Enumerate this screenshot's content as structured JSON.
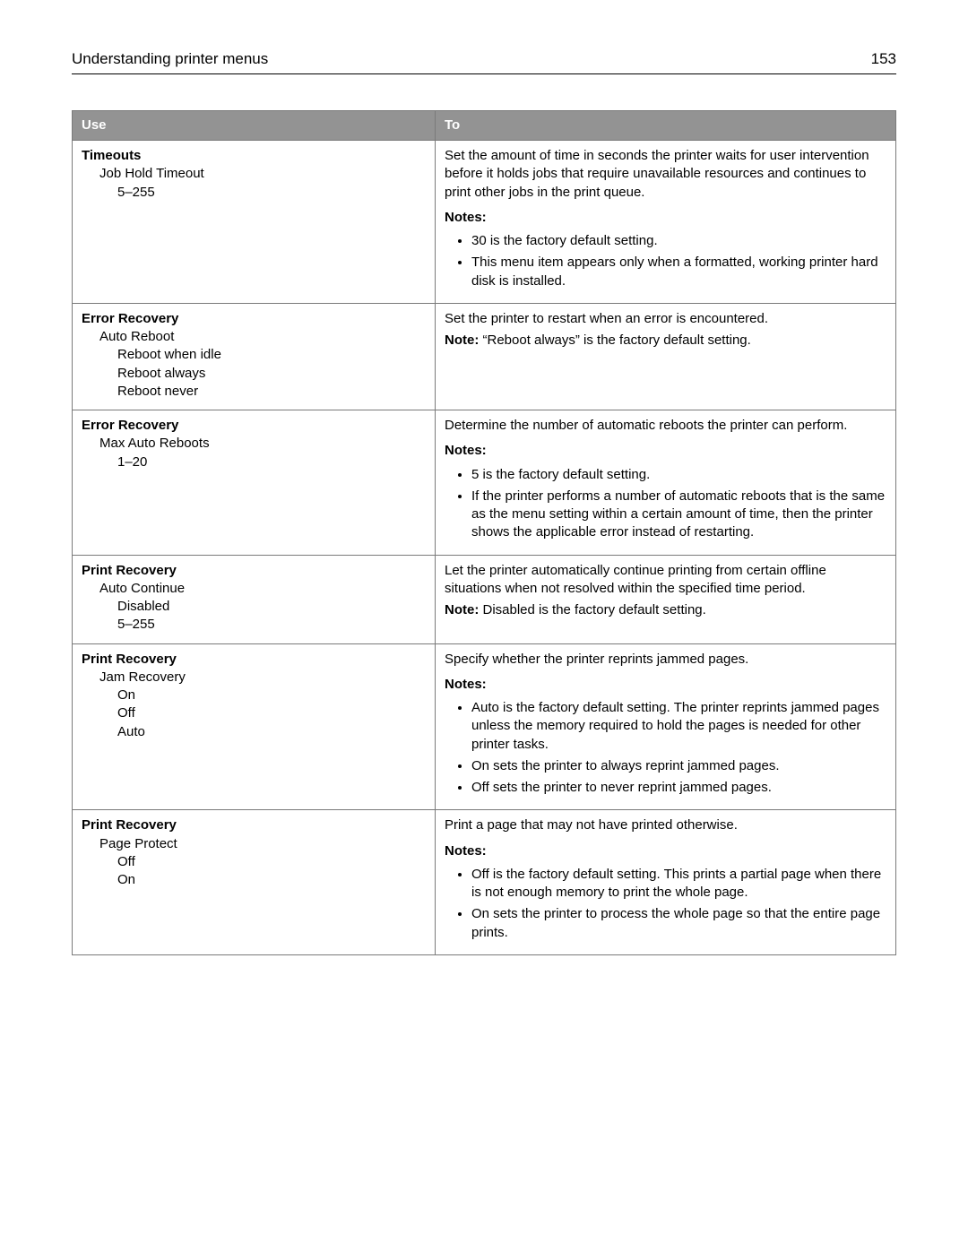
{
  "header": {
    "title": "Understanding printer menus",
    "page": "153"
  },
  "table": {
    "col_use": "Use",
    "col_to": "To",
    "rows": [
      {
        "use": {
          "l0": "Timeouts",
          "l1a": "Job Hold Timeout",
          "l2a": "5–255"
        },
        "to": {
          "desc": "Set the amount of time in seconds the printer waits for user intervention before it holds jobs that require unavailable resources and continues to print other jobs in the print queue.",
          "notes_label": "Notes:",
          "notes": [
            "30 is the factory default setting.",
            "This menu item appears only when a formatted, working printer hard disk is installed."
          ]
        }
      },
      {
        "use": {
          "l0": "Error Recovery",
          "l1a": "Auto Reboot",
          "l2a": "Reboot when idle",
          "l2b": "Reboot always",
          "l2c": "Reboot never"
        },
        "to": {
          "desc": "Set the printer to restart when an error is encountered.",
          "note_bold": "Note:",
          "note_text": " “Reboot always” is the factory default setting."
        }
      },
      {
        "use": {
          "l0": "Error Recovery",
          "l1a": "Max Auto Reboots",
          "l2a": "1–20"
        },
        "to": {
          "desc": "Determine the number of automatic reboots the printer can perform.",
          "notes_label": "Notes:",
          "notes": [
            "5 is the factory default setting.",
            "If the printer performs a number of automatic reboots that is the same as the menu setting within a certain amount of time, then the printer shows the applicable error instead of restarting."
          ]
        }
      },
      {
        "use": {
          "l0": "Print Recovery",
          "l1a": "Auto Continue",
          "l2a": "Disabled",
          "l2b": "5–255"
        },
        "to": {
          "desc": "Let the printer automatically continue printing from certain offline situations when not resolved within the specified time period.",
          "note_bold": "Note:",
          "note_text": " Disabled is the factory default setting."
        }
      },
      {
        "use": {
          "l0": "Print Recovery",
          "l1a": "Jam Recovery",
          "l2a": "On",
          "l2b": "Off",
          "l2c": "Auto"
        },
        "to": {
          "desc": "Specify whether the printer reprints jammed pages.",
          "notes_label": "Notes:",
          "notes": [
            "Auto is the factory default setting. The printer reprints jammed pages unless the memory required to hold the pages is needed for other printer tasks.",
            "On sets the printer to always reprint jammed pages.",
            "Off sets the printer to never reprint jammed pages."
          ]
        }
      },
      {
        "use": {
          "l0": "Print Recovery",
          "l1a": "Page Protect",
          "l2a": "Off",
          "l2b": "On"
        },
        "to": {
          "desc": "Print a page that may not have printed otherwise.",
          "notes_label": "Notes:",
          "notes": [
            "Off is the factory default setting. This prints a partial page when there is not enough memory to print the whole page.",
            "On sets the printer to process the whole page so that the entire page prints."
          ]
        }
      }
    ]
  }
}
